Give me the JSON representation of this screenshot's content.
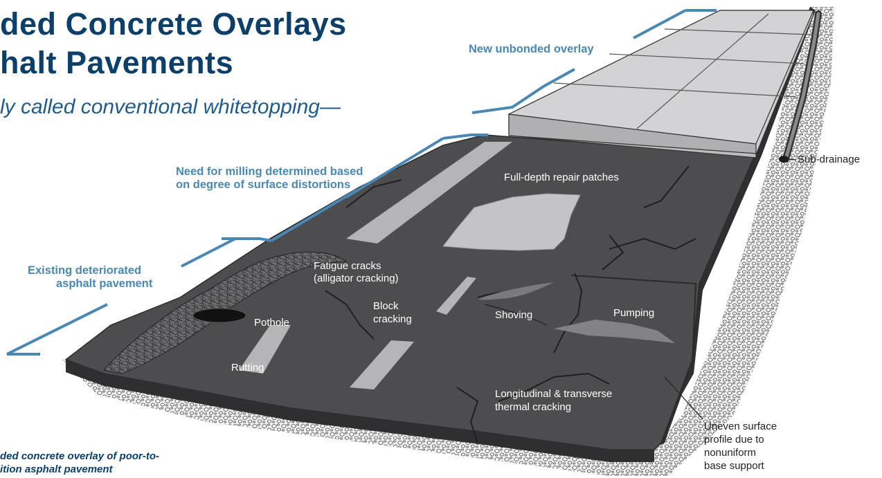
{
  "title": {
    "line1": "ded Concrete Overlays",
    "line2": "halt Pavements"
  },
  "subtitle": "ly called conventional whitetopping—",
  "callouts": {
    "new_overlay": "New unbonded overlay",
    "milling_line1": "Need for milling determined based",
    "milling_line2": "on degree of surface distortions",
    "existing_line1": "Existing deteriorated",
    "existing_line2": "asphalt pavement"
  },
  "distress_labels": {
    "full_depth": "Full-depth repair patches",
    "fatigue_line1": "Fatigue cracks",
    "fatigue_line2": "(alligator cracking)",
    "block_line1": "Block",
    "block_line2": "cracking",
    "pothole": "Pothole",
    "rutting": "Rutting",
    "shoving": "Shoving",
    "pumping": "Pumping",
    "thermal_line1": "Longitudinal & transverse",
    "thermal_line2": "thermal cracking"
  },
  "side_labels": {
    "sub_drainage": "Sub-drainage",
    "uneven_line1": "Uneven surface",
    "uneven_line2": "profile due to",
    "uneven_line3": "nonuniform",
    "uneven_line4": "base support"
  },
  "caption": {
    "line1": "ded concrete overlay of poor-to-",
    "line2": "ition asphalt pavement"
  },
  "colors": {
    "title": "#0c3f6a",
    "callout": "#4a88b4",
    "asphalt": "#4d4d4f",
    "asphalt_edge": "#3a3a3c",
    "concrete_top": "#cfcfd1",
    "concrete_side": "#bdbdbf",
    "patch": "#b9b9bb",
    "gravel": "#e9e9e9"
  }
}
